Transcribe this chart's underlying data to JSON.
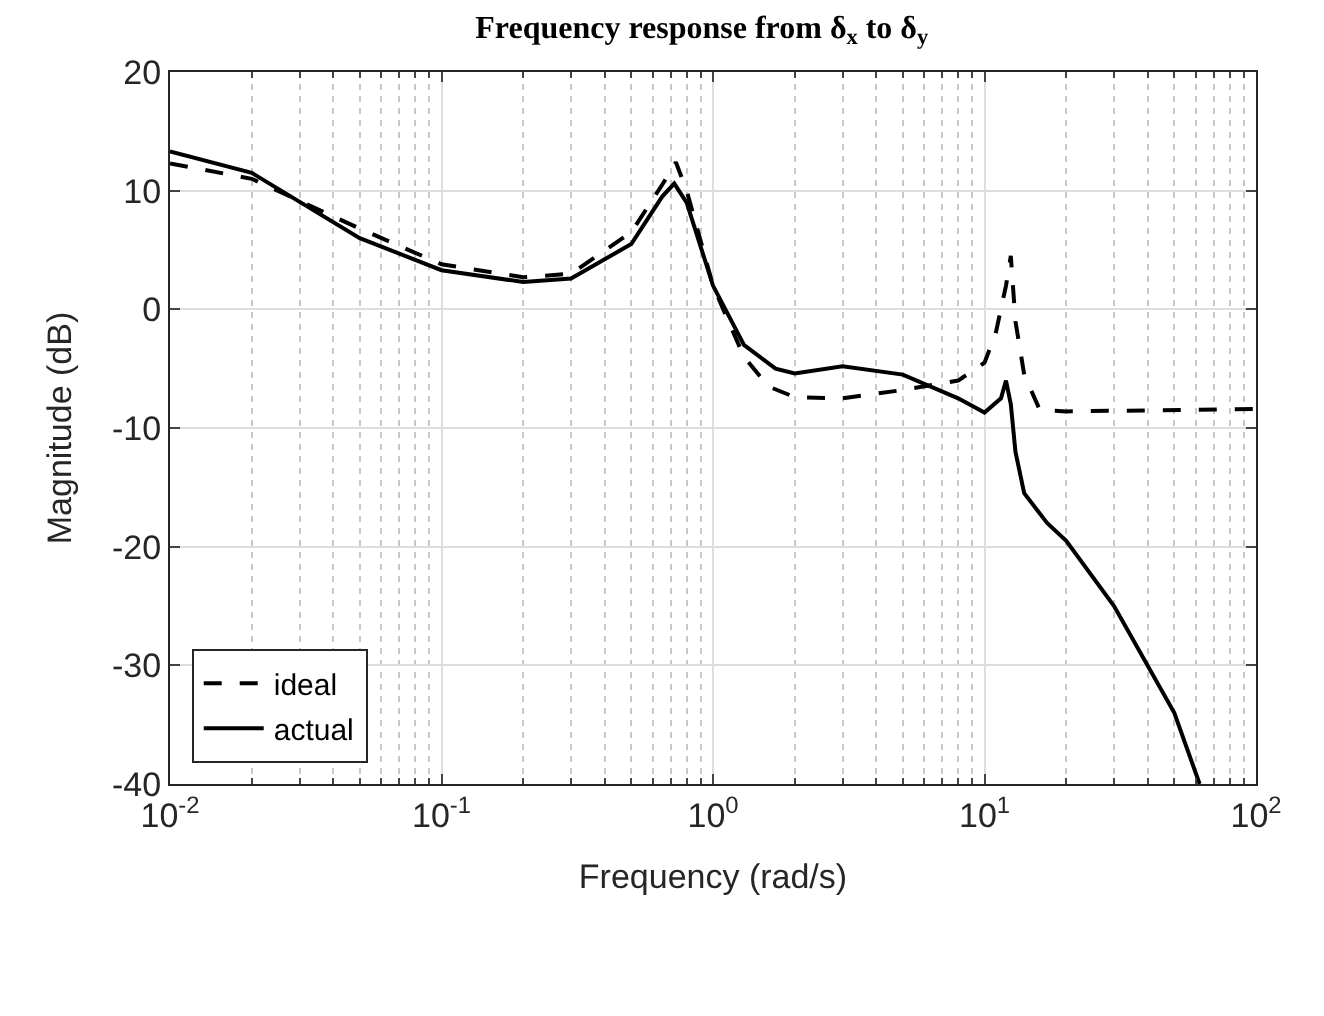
{
  "chart_data": {
    "type": "line",
    "title": "Frequency response from δ$_{x}$ to δ$_{y}$",
    "xlabel": "Frequency (rad/s)",
    "ylabel": "Magnitude (dB)",
    "log": "x",
    "grid": true,
    "legend": "bottom left",
    "marker": "none",
    "xlim": [
      0.01,
      100
    ],
    "xticks": [
      {
        "value": 0.01,
        "label": "10$^{-2}$"
      },
      {
        "value": 0.1,
        "label": "10$^{-1}$"
      },
      {
        "value": 1,
        "label": "10$^{0}$"
      },
      {
        "value": 10,
        "label": "10$^{1}$"
      },
      {
        "value": 100,
        "label": "10$^{2}$"
      }
    ],
    "ylim": [
      -40,
      20
    ],
    "yticks": [
      -40,
      -30,
      -20,
      -10,
      0,
      10,
      20
    ],
    "series": [
      {
        "name": "ideal",
        "color": "#000000",
        "line_style": "dashed",
        "x": [
          0.01,
          0.02,
          0.05,
          0.1,
          0.2,
          0.3,
          0.5,
          0.65,
          0.73,
          0.8,
          1.0,
          1.3,
          1.6,
          2,
          3,
          5,
          8,
          10,
          11,
          12,
          12.5,
          13,
          14,
          16,
          20,
          100
        ],
        "values": [
          12.3,
          11,
          6.8,
          3.8,
          2.7,
          3,
          6.5,
          10.5,
          12.4,
          10,
          2,
          -4,
          -6.5,
          -7.4,
          -7.5,
          -6.8,
          -6,
          -4.5,
          -2,
          2,
          4.5,
          -1,
          -5.5,
          -8.5,
          -8.6,
          -8.4
        ]
      },
      {
        "name": "actual",
        "color": "#000000",
        "line_style": "solid",
        "x": [
          0.01,
          0.02,
          0.05,
          0.1,
          0.2,
          0.3,
          0.5,
          0.65,
          0.72,
          0.8,
          1.0,
          1.3,
          1.7,
          2,
          3,
          5,
          8,
          10,
          11.5,
          12,
          12.5,
          13,
          14,
          17,
          20,
          30,
          50,
          62
        ],
        "values": [
          13.3,
          11.5,
          6,
          3.3,
          2.3,
          2.6,
          5.5,
          9.5,
          10.6,
          9,
          2,
          -3,
          -5,
          -5.4,
          -4.8,
          -5.5,
          -7.5,
          -8.7,
          -7.5,
          -6,
          -8,
          -12,
          -15.5,
          -18,
          -19.5,
          -25,
          -34,
          -40
        ]
      }
    ]
  }
}
